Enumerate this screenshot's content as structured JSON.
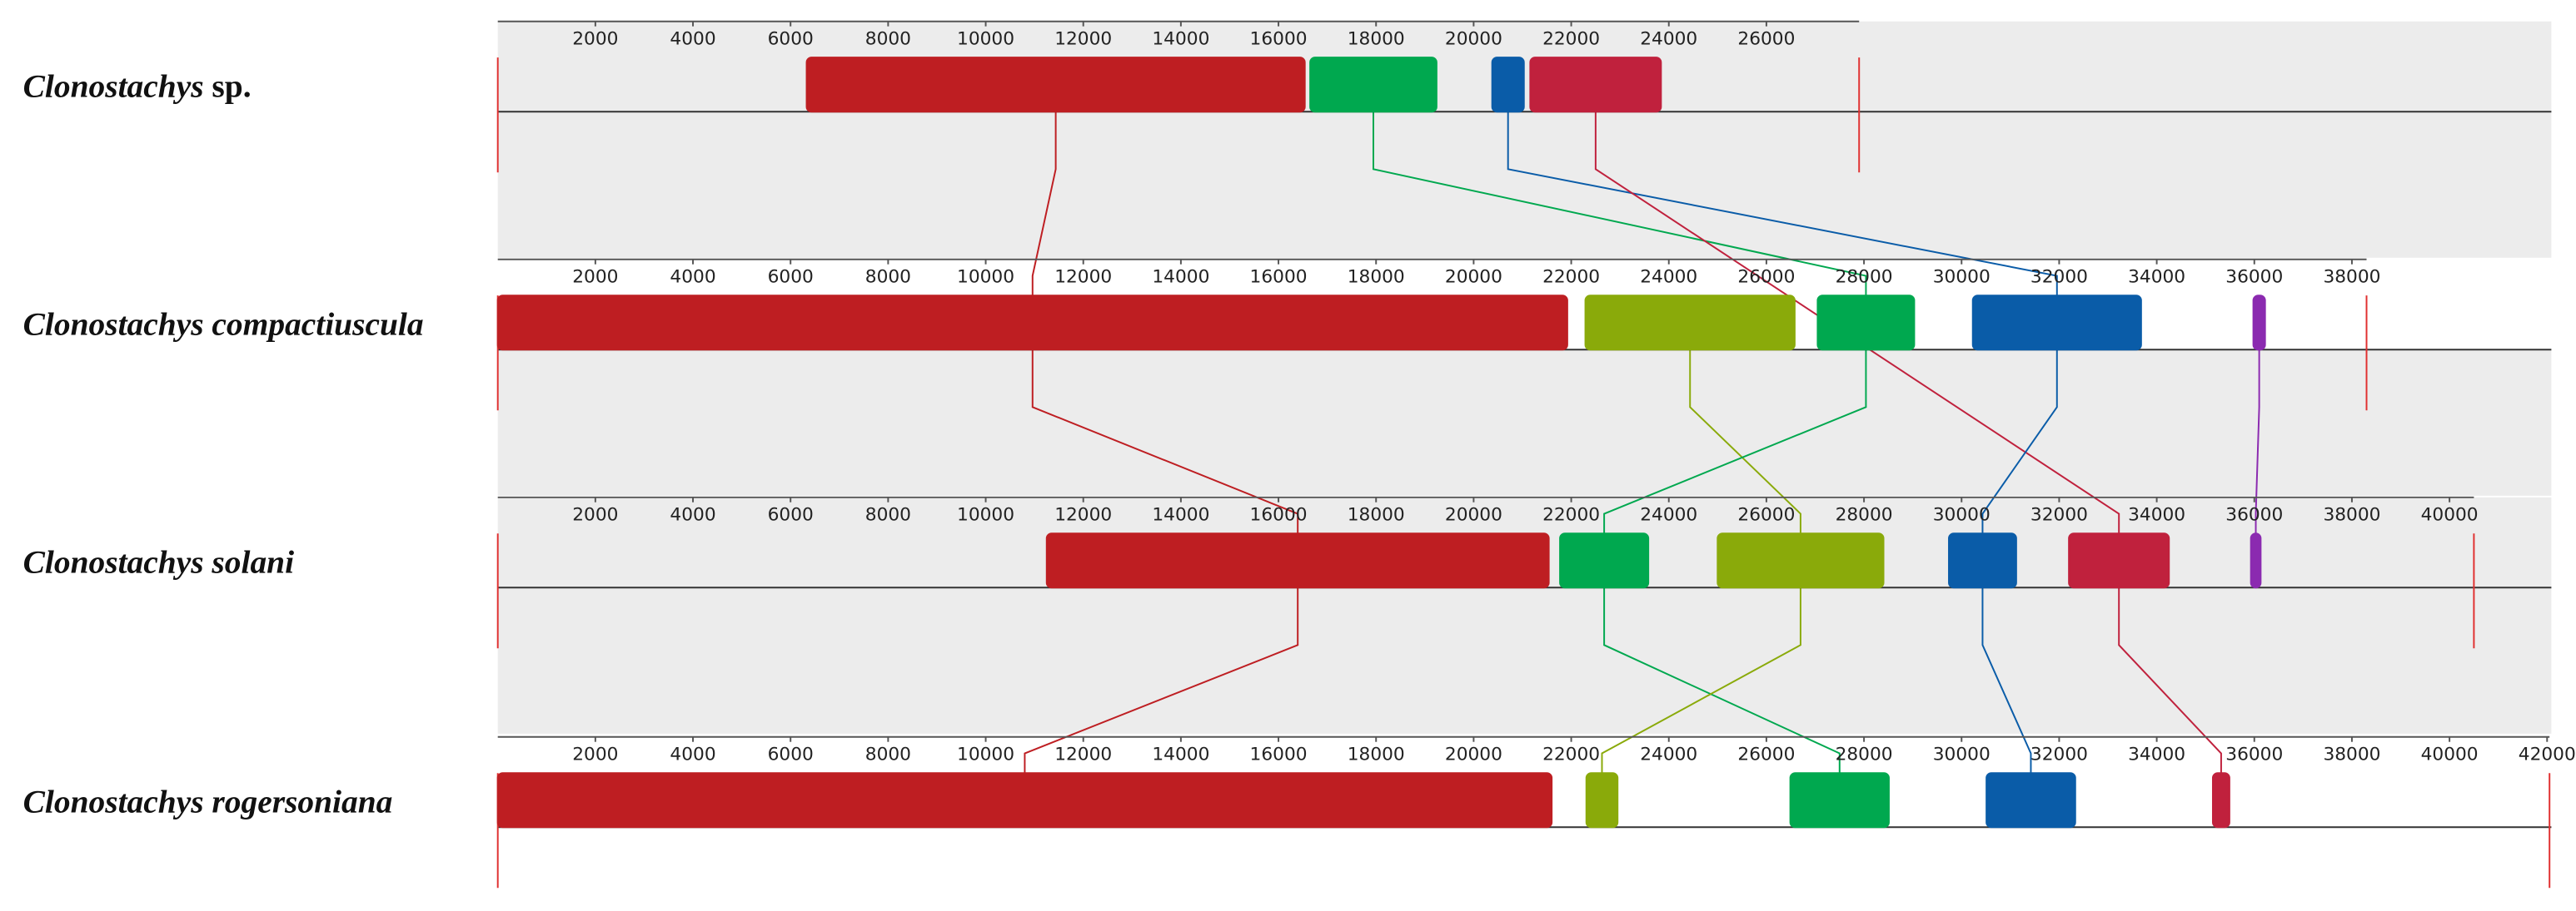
{
  "chart_data": {
    "type": "alignment",
    "colors": {
      "red": "#be1e22",
      "green": "#00a84f",
      "blue": "#0a5ca8",
      "crimson": "#c0213d",
      "olive": "#8aaa0a",
      "purple": "#8b2ab0"
    },
    "tracks": [
      {
        "genus": "Clonostachys",
        "species": "sp.",
        "species_italic": false,
        "xlim": [
          0,
          27900
        ],
        "xticks": [
          2000,
          4000,
          6000,
          8000,
          10000,
          12000,
          14000,
          16000,
          18000,
          20000,
          22000,
          24000,
          26000
        ],
        "blocks": [
          {
            "start": 6330,
            "end": 16540,
            "color": "red"
          },
          {
            "start": 16650,
            "end": 19240,
            "color": "green"
          },
          {
            "start": 20380,
            "end": 21030,
            "color": "blue"
          },
          {
            "start": 21160,
            "end": 23840,
            "color": "crimson"
          }
        ]
      },
      {
        "genus": "Clonostachys",
        "species": "compactiuscula",
        "species_italic": true,
        "xlim": [
          0,
          38300
        ],
        "xticks": [
          2000,
          4000,
          6000,
          8000,
          10000,
          12000,
          14000,
          16000,
          18000,
          20000,
          22000,
          24000,
          26000,
          28000,
          30000,
          32000,
          34000,
          36000,
          38000
        ],
        "blocks": [
          {
            "start": 0,
            "end": 21920,
            "color": "red"
          },
          {
            "start": 22290,
            "end": 26580,
            "color": "olive"
          },
          {
            "start": 27050,
            "end": 29030,
            "color": "green"
          },
          {
            "start": 30230,
            "end": 33680,
            "color": "blue"
          },
          {
            "start": 35980,
            "end": 36220,
            "color": "purple"
          }
        ]
      },
      {
        "genus": "Clonostachys",
        "species": "solani",
        "species_italic": true,
        "xlim": [
          0,
          40500
        ],
        "xticks": [
          2000,
          4000,
          6000,
          8000,
          10000,
          12000,
          14000,
          16000,
          18000,
          20000,
          22000,
          24000,
          26000,
          28000,
          30000,
          32000,
          34000,
          36000,
          38000,
          40000
        ],
        "blocks": [
          {
            "start": 11250,
            "end": 21540,
            "color": "red"
          },
          {
            "start": 21770,
            "end": 23580,
            "color": "green"
          },
          {
            "start": 25000,
            "end": 28400,
            "color": "olive"
          },
          {
            "start": 29740,
            "end": 31120,
            "color": "blue"
          },
          {
            "start": 32200,
            "end": 34250,
            "color": "crimson"
          },
          {
            "start": 35930,
            "end": 36130,
            "color": "purple"
          }
        ]
      },
      {
        "genus": "Clonostachys",
        "species": "rogersoniana",
        "species_italic": true,
        "xlim": [
          0,
          42050
        ],
        "xticks": [
          2000,
          4000,
          6000,
          8000,
          10000,
          12000,
          14000,
          16000,
          18000,
          20000,
          22000,
          24000,
          26000,
          28000,
          30000,
          32000,
          34000,
          36000,
          38000,
          40000,
          42000
        ],
        "blocks": [
          {
            "start": 0,
            "end": 21600,
            "color": "red"
          },
          {
            "start": 22310,
            "end": 22950,
            "color": "olive"
          },
          {
            "start": 26490,
            "end": 28510,
            "color": "green"
          },
          {
            "start": 30510,
            "end": 32330,
            "color": "blue"
          },
          {
            "start": 35150,
            "end": 35490,
            "color": "crimson"
          }
        ]
      }
    ]
  }
}
